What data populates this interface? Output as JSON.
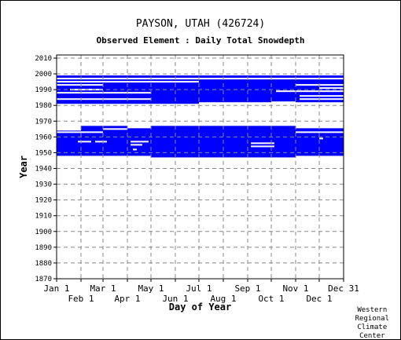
{
  "chart_data": {
    "type": "heatmap",
    "title": "PAYSON, UTAH   (426724)",
    "subtitle": "Observed Element : Daily Total Snowdepth",
    "xlabel": "Day of Year",
    "ylabel": "Year",
    "xlim": [
      1,
      366
    ],
    "ylim": [
      1870,
      2012
    ],
    "x_ticks_top_row": [
      {
        "label": "Jan 1",
        "day": 1
      },
      {
        "label": "Mar 1",
        "day": 60
      },
      {
        "label": "May 1",
        "day": 121
      },
      {
        "label": "Jul 1",
        "day": 182
      },
      {
        "label": "Sep 1",
        "day": 244
      },
      {
        "label": "Nov 1",
        "day": 305
      },
      {
        "label": "Dec 31",
        "day": 366
      }
    ],
    "x_ticks_bottom_row": [
      {
        "label": "Feb 1",
        "day": 32
      },
      {
        "label": "Apr 1",
        "day": 91
      },
      {
        "label": "Jun 1",
        "day": 152
      },
      {
        "label": "Aug 1",
        "day": 213
      },
      {
        "label": "Oct 1",
        "day": 274
      },
      {
        "label": "Dec 1",
        "day": 335
      }
    ],
    "y_ticks": [
      "1870",
      "1880",
      "1890",
      "1900",
      "1910",
      "1920",
      "1930",
      "1940",
      "1950",
      "1960",
      "1970",
      "1980",
      "1990",
      "2000",
      "2010"
    ],
    "grid": true,
    "data_color": "#0000ff",
    "gap_color": "#ffffff",
    "coverage_blocks": [
      {
        "day_start": 1,
        "day_end": 32,
        "year_start": 1948,
        "year_end": 1964
      },
      {
        "day_start": 32,
        "day_end": 91,
        "year_start": 1948,
        "year_end": 1967
      },
      {
        "day_start": 91,
        "day_end": 121,
        "year_start": 1948,
        "year_end": 1966
      },
      {
        "day_start": 121,
        "day_end": 305,
        "year_start": 1947,
        "year_end": 1967
      },
      {
        "day_start": 305,
        "day_end": 335,
        "year_start": 1948,
        "year_end": 1966
      },
      {
        "day_start": 335,
        "day_end": 366,
        "year_start": 1948,
        "year_end": 1966
      },
      {
        "day_start": 1,
        "day_end": 182,
        "year_start": 1981,
        "year_end": 1999
      },
      {
        "day_start": 182,
        "day_end": 274,
        "year_start": 1982,
        "year_end": 1999
      },
      {
        "day_start": 274,
        "day_end": 366,
        "year_start": 1982,
        "year_end": 1999
      }
    ],
    "missing_segments": [
      {
        "day_start": 1,
        "day_end": 366,
        "year": 1997
      },
      {
        "day_start": 1,
        "day_end": 182,
        "year": 1995
      },
      {
        "day_start": 1,
        "day_end": 60,
        "year": 1993
      },
      {
        "day_start": 18,
        "day_end": 60,
        "year": 1990
      },
      {
        "day_start": 1,
        "day_end": 121,
        "year": 1988
      },
      {
        "day_start": 1,
        "day_end": 121,
        "year": 1984
      },
      {
        "day_start": 1,
        "day_end": 182,
        "year": 1980
      },
      {
        "day_start": 1,
        "day_end": 366,
        "year": 1968.5
      },
      {
        "day_start": 1,
        "day_end": 60,
        "year": 1963
      },
      {
        "day_start": 305,
        "day_end": 366,
        "year": 1963
      },
      {
        "day_start": 305,
        "day_end": 366,
        "year": 1966
      },
      {
        "day_start": 60,
        "day_end": 91,
        "year": 1965
      },
      {
        "day_start": 1,
        "day_end": 32,
        "year": 1965
      },
      {
        "day_start": 91,
        "day_end": 121,
        "year": 1966
      },
      {
        "day_start": 274,
        "day_end": 366,
        "year": 1981
      },
      {
        "day_start": 274,
        "day_end": 305,
        "year": 1982
      },
      {
        "day_start": 280,
        "day_end": 305,
        "year": 1989
      },
      {
        "day_start": 305,
        "day_end": 366,
        "year": 1993
      },
      {
        "day_start": 310,
        "day_end": 366,
        "year": 1986
      },
      {
        "day_start": 310,
        "day_end": 366,
        "year": 1984
      },
      {
        "day_start": 305,
        "day_end": 366,
        "year": 1989
      },
      {
        "day_start": 335,
        "day_end": 366,
        "year": 1991
      },
      {
        "day_start": 28,
        "day_end": 45,
        "year": 1957
      },
      {
        "day_start": 50,
        "day_end": 65,
        "year": 1957
      },
      {
        "day_start": 95,
        "day_end": 110,
        "year": 1955
      },
      {
        "day_start": 95,
        "day_end": 118,
        "year": 1957
      },
      {
        "day_start": 98,
        "day_end": 103,
        "year": 1952
      },
      {
        "day_start": 248,
        "day_end": 278,
        "year": 1956
      },
      {
        "day_start": 248,
        "day_end": 278,
        "year": 1954
      },
      {
        "day_start": 335,
        "day_end": 340,
        "year": 1959
      }
    ]
  },
  "credit": [
    "Western",
    "Regional",
    "Climate",
    "Center"
  ]
}
